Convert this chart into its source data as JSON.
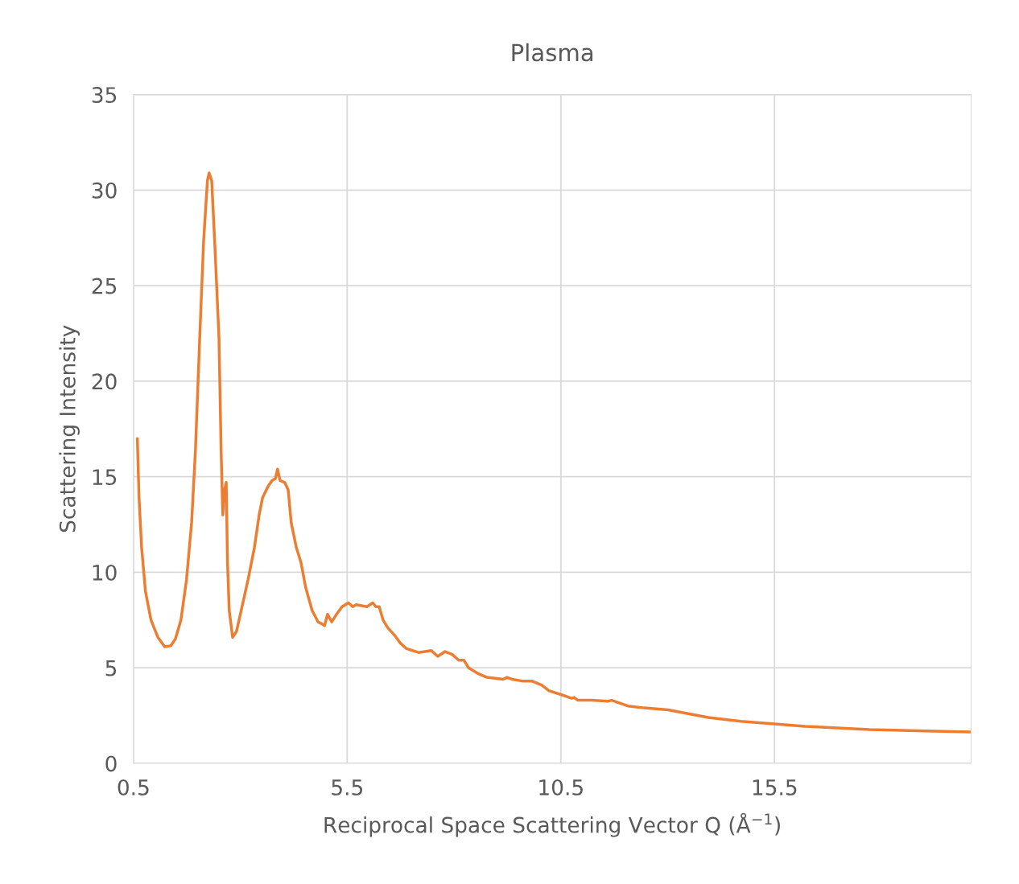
{
  "chart_data": {
    "type": "line",
    "title": "Plasma",
    "xlabel": "Reciprocal Space Scattering Vector Q (Å$^{−1}$)",
    "ylabel": "Scattering Intensity",
    "xlim": [
      0.5,
      20.1
    ],
    "xticks": [
      0.5,
      5.5,
      10.5,
      15.5
    ],
    "ylim": [
      0,
      35
    ],
    "yticks": [
      0,
      5,
      10,
      15,
      20,
      25,
      30,
      35
    ],
    "grid": true,
    "marker": "none",
    "line_style": "solid",
    "series": [
      {
        "color": "#ed7d31",
        "x": [
          0.59,
          0.63,
          0.69,
          0.78,
          0.91,
          1.07,
          1.23,
          1.37,
          1.48,
          1.61,
          1.74,
          1.86,
          1.95,
          2.05,
          2.14,
          2.23,
          2.27,
          2.33,
          2.4,
          2.5,
          2.55,
          2.59,
          2.63,
          2.67,
          2.7,
          2.74,
          2.82,
          2.91,
          3.02,
          3.18,
          3.33,
          3.44,
          3.52,
          3.65,
          3.74,
          3.82,
          3.87,
          3.93,
          4.04,
          4.12,
          4.19,
          4.31,
          4.42,
          4.53,
          4.68,
          4.82,
          4.91,
          4.97,
          5.04,
          5.14,
          5.25,
          5.38,
          5.53,
          5.63,
          5.71,
          5.96,
          6.1,
          6.17,
          6.25,
          6.34,
          6.45,
          6.61,
          6.74,
          6.89,
          7.17,
          7.47,
          7.62,
          7.79,
          7.96,
          8.11,
          8.23,
          8.34,
          8.56,
          8.77,
          9.15,
          9.24,
          9.36,
          9.62,
          9.83,
          10.05,
          10.22,
          10.5,
          10.75,
          10.81,
          10.9,
          11.22,
          11.6,
          11.69,
          12.07,
          12.45,
          13.01,
          13.48,
          13.95,
          14.71,
          15.5,
          16.21,
          16.97,
          17.72,
          18.48,
          19.23,
          20.1
        ],
        "values": [
          17.0,
          13.9,
          11.3,
          9.0,
          7.5,
          6.6,
          6.1,
          6.15,
          6.5,
          7.5,
          9.6,
          12.6,
          16.4,
          22.3,
          27.3,
          30.5,
          30.9,
          30.5,
          27.3,
          22.3,
          16.4,
          13.0,
          14.3,
          14.7,
          10.5,
          8.0,
          6.6,
          6.9,
          8.0,
          9.6,
          11.3,
          13.0,
          13.9,
          14.5,
          14.8,
          14.9,
          15.4,
          14.8,
          14.7,
          14.3,
          12.6,
          11.3,
          10.5,
          9.2,
          8.0,
          7.4,
          7.3,
          7.2,
          7.8,
          7.4,
          7.8,
          8.2,
          8.4,
          8.2,
          8.3,
          8.2,
          8.4,
          8.2,
          8.2,
          7.5,
          7.1,
          6.7,
          6.3,
          6.0,
          5.8,
          5.9,
          5.6,
          5.85,
          5.7,
          5.4,
          5.4,
          5.0,
          4.7,
          4.5,
          4.4,
          4.5,
          4.4,
          4.3,
          4.3,
          4.1,
          3.8,
          3.6,
          3.4,
          3.45,
          3.3,
          3.3,
          3.25,
          3.3,
          3.0,
          2.9,
          2.8,
          2.6,
          2.4,
          2.2,
          2.06,
          1.94,
          1.85,
          1.77,
          1.73,
          1.68,
          1.64
        ]
      }
    ]
  }
}
